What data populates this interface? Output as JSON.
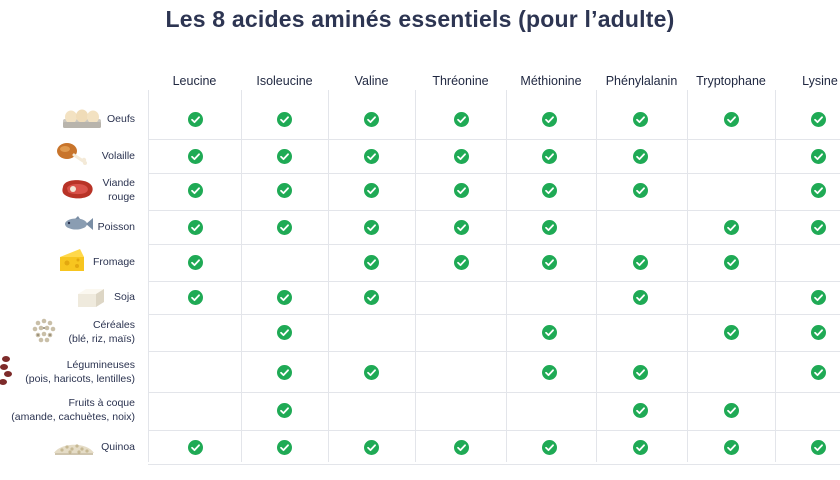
{
  "title": "Les 8 acides aminés essentiels (pour l’adulte)",
  "colors": {
    "check": "#1faa55",
    "title": "#2d3552",
    "grid": "#e3e5ea"
  },
  "columns": [
    "Leucine",
    "Isoleucine",
    "Valine",
    "Thréonine",
    "Méthionine",
    "Phénylalanin",
    "Tryptophane",
    "Lysine"
  ],
  "rows": [
    {
      "label": [
        "Oeufs"
      ],
      "icon": "eggs-icon",
      "checks": [
        1,
        1,
        1,
        1,
        1,
        1,
        1,
        1
      ]
    },
    {
      "label": [
        "Volaille"
      ],
      "icon": "poultry-icon",
      "checks": [
        1,
        1,
        1,
        1,
        1,
        1,
        0,
        1
      ]
    },
    {
      "label": [
        "Viande",
        "rouge"
      ],
      "icon": "steak-icon",
      "checks": [
        1,
        1,
        1,
        1,
        1,
        1,
        0,
        1
      ]
    },
    {
      "label": [
        "Poisson"
      ],
      "icon": "fish-icon",
      "checks": [
        1,
        1,
        1,
        1,
        1,
        0,
        1,
        1
      ]
    },
    {
      "label": [
        "Fromage"
      ],
      "icon": "cheese-icon",
      "checks": [
        1,
        0,
        1,
        1,
        1,
        1,
        1,
        0
      ]
    },
    {
      "label": [
        "Soja"
      ],
      "icon": "tofu-icon",
      "checks": [
        1,
        1,
        1,
        0,
        0,
        1,
        0,
        1
      ]
    },
    {
      "label": [
        "Céréales",
        "(blé, riz, maïs)"
      ],
      "icon": "grains-icon",
      "checks": [
        0,
        1,
        0,
        0,
        1,
        0,
        1,
        1
      ]
    },
    {
      "label": [
        "Légumineuses",
        "(pois, haricots, lentilles)"
      ],
      "icon": "beans-icon",
      "checks": [
        0,
        1,
        1,
        0,
        1,
        1,
        0,
        1
      ]
    },
    {
      "label": [
        "Fruits à coque",
        "(amande, cachuètes, noix)"
      ],
      "icon": "",
      "checks": [
        0,
        1,
        0,
        0,
        0,
        1,
        1,
        0
      ]
    },
    {
      "label": [
        "Quinoa"
      ],
      "icon": "quinoa-icon",
      "checks": [
        1,
        1,
        1,
        1,
        1,
        1,
        1,
        1
      ]
    }
  ]
}
